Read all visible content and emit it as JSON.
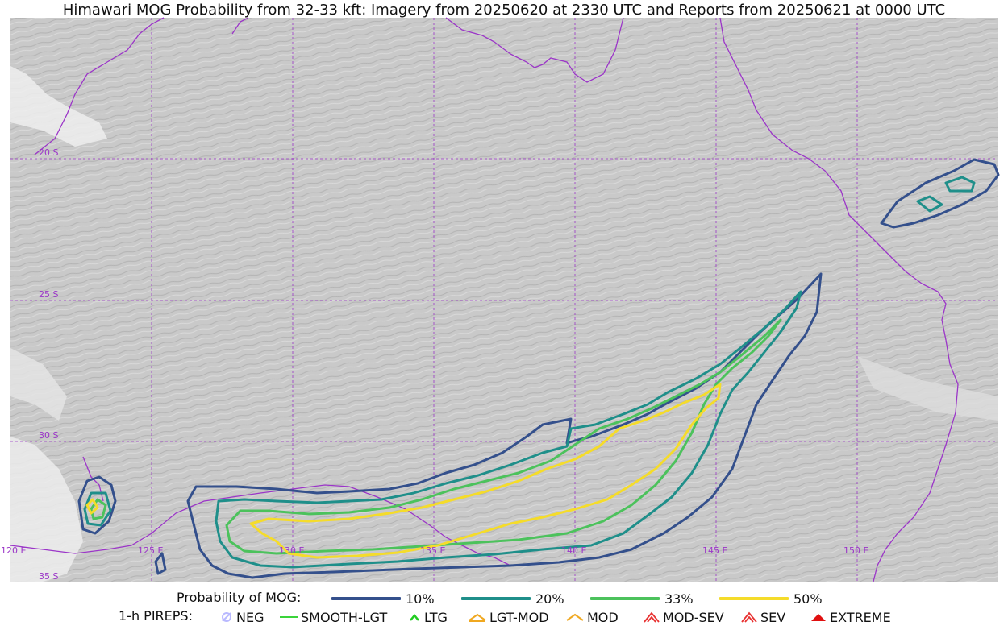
{
  "title": "Himawari MOG Probability from 32-33 kft: Imagery from 20250620 at 2330 UTC and Reports from 20250621 at 0000 UTC",
  "map": {
    "lat_labels": [
      "20 S",
      "25 S",
      "30 S",
      "35 S"
    ],
    "lon_labels": [
      "120 E",
      "125 E",
      "130 E",
      "135 E",
      "140 E",
      "145 E",
      "150 E"
    ],
    "colors": {
      "background": "#c8c8c8",
      "coastline": "#9b35c8",
      "grid": "#9b35c8"
    }
  },
  "legend": {
    "probability_title": "Probability of MOG:",
    "probability_items": [
      {
        "label": "10%",
        "color": "#34508c"
      },
      {
        "label": "20%",
        "color": "#1f8f8a"
      },
      {
        "label": "33%",
        "color": "#4cc25c"
      },
      {
        "label": "50%",
        "color": "#f5dc2a"
      }
    ],
    "pirep_title": "1-h PIREPS:",
    "pirep_items": [
      {
        "label": "NEG",
        "icon": "neg-icon",
        "color": "#b9b9ff"
      },
      {
        "label": "SMOOTH-LGT",
        "icon": "smooth-lgt-line",
        "color": "#3ad43a"
      },
      {
        "label": "LTG",
        "icon": "ltg-caret-icon",
        "color": "#22cc22"
      },
      {
        "label": "LGT-MOD",
        "icon": "lgt-mod-caret-icon",
        "color": "#f0a820"
      },
      {
        "label": "MOD",
        "icon": "mod-caret-icon",
        "color": "#f0a820"
      },
      {
        "label": "MOD-SEV",
        "icon": "mod-sev-caret-icon",
        "color": "#e83030"
      },
      {
        "label": "SEV",
        "icon": "sev-caret-icon",
        "color": "#e83030"
      },
      {
        "label": "EXTREME",
        "icon": "extreme-caret-icon",
        "color": "#e01010"
      }
    ]
  }
}
